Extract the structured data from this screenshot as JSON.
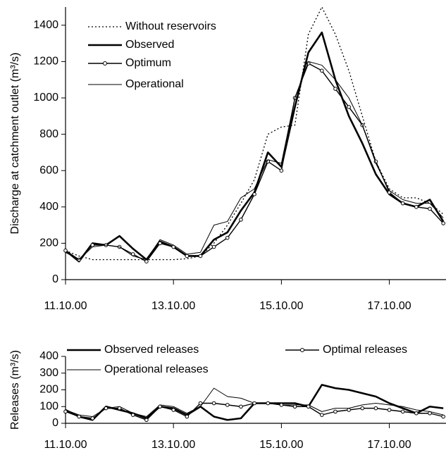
{
  "chart_data": [
    {
      "type": "line",
      "ylabel": "Discharge at catchment outlet (m³/s)",
      "x": [
        11,
        11.25,
        11.5,
        11.75,
        12,
        12.25,
        12.5,
        12.75,
        13,
        13.25,
        13.5,
        13.75,
        14,
        14.25,
        14.5,
        14.75,
        15,
        15.25,
        15.5,
        15.75,
        16,
        16.25,
        16.5,
        16.75,
        17,
        17.25,
        17.5,
        17.75,
        18
      ],
      "xlim": [
        11,
        18.05
      ],
      "xticks": [
        {
          "value": 11,
          "label": "11.10.00"
        },
        {
          "value": 13,
          "label": "13.10.00"
        },
        {
          "value": 15,
          "label": "15.10.00"
        },
        {
          "value": 17,
          "label": "17.10.00"
        }
      ],
      "ylim": [
        0,
        1500
      ],
      "yticks": [
        0,
        200,
        400,
        600,
        800,
        1000,
        1200,
        1400
      ],
      "series": [
        {
          "name": "Without reservoirs",
          "color": "#000000",
          "style": "dotted",
          "values": [
            160,
            130,
            110,
            110,
            110,
            110,
            110,
            110,
            110,
            115,
            130,
            200,
            300,
            420,
            550,
            800,
            840,
            850,
            1350,
            1500,
            1350,
            1150,
            900,
            650,
            500,
            450,
            450,
            420,
            360
          ]
        },
        {
          "name": "Observed",
          "color": "#000000",
          "style": "thick",
          "values": [
            160,
            100,
            200,
            190,
            240,
            170,
            110,
            210,
            180,
            130,
            130,
            220,
            260,
            380,
            480,
            700,
            620,
            950,
            1250,
            1360,
            1100,
            900,
            750,
            580,
            470,
            420,
            400,
            440,
            320
          ]
        },
        {
          "name": "Optimum",
          "color": "#000000",
          "style": "markers",
          "values": [
            160,
            110,
            190,
            190,
            180,
            140,
            100,
            200,
            180,
            130,
            130,
            180,
            230,
            330,
            470,
            650,
            600,
            1000,
            1190,
            1150,
            1050,
            950,
            850,
            650,
            480,
            420,
            400,
            390,
            310
          ]
        },
        {
          "name": "Operational",
          "color": "#000000",
          "style": "thin",
          "values": [
            150,
            110,
            180,
            190,
            180,
            130,
            110,
            220,
            190,
            140,
            150,
            300,
            320,
            450,
            500,
            660,
            640,
            1000,
            1200,
            1180,
            1100,
            1000,
            850,
            640,
            490,
            440,
            420,
            420,
            340
          ]
        }
      ]
    },
    {
      "type": "line",
      "ylabel": "Releases (m³/s)",
      "x": [
        11,
        11.25,
        11.5,
        11.75,
        12,
        12.25,
        12.5,
        12.75,
        13,
        13.25,
        13.5,
        13.75,
        14,
        14.25,
        14.5,
        14.75,
        15,
        15.25,
        15.5,
        15.75,
        16,
        16.25,
        16.5,
        16.75,
        17,
        17.25,
        17.5,
        17.75,
        18
      ],
      "xlim": [
        11,
        18.05
      ],
      "xticks": [
        {
          "value": 11,
          "label": "11.10.00"
        },
        {
          "value": 13,
          "label": "13.10.00"
        },
        {
          "value": 15,
          "label": "15.10.00"
        },
        {
          "value": 17,
          "label": "17.10.00"
        }
      ],
      "ylim": [
        0,
        400
      ],
      "yticks": [
        0,
        100,
        200,
        300,
        400
      ],
      "series": [
        {
          "name": "Observed releases",
          "color": "#000000",
          "style": "thick",
          "values": [
            80,
            40,
            20,
            100,
            80,
            60,
            30,
            100,
            90,
            50,
            100,
            40,
            20,
            30,
            120,
            120,
            120,
            120,
            100,
            230,
            210,
            200,
            180,
            160,
            120,
            90,
            60,
            100,
            90
          ]
        },
        {
          "name": "Operational releases",
          "color": "#000000",
          "style": "thin",
          "values": [
            80,
            50,
            40,
            90,
            100,
            60,
            40,
            110,
            100,
            60,
            100,
            210,
            160,
            150,
            120,
            120,
            110,
            110,
            110,
            70,
            90,
            90,
            110,
            120,
            110,
            100,
            80,
            70,
            50
          ]
        },
        {
          "name": "Optimal releases",
          "color": "#000000",
          "style": "markers",
          "values": [
            70,
            40,
            30,
            90,
            90,
            50,
            20,
            100,
            80,
            40,
            120,
            120,
            110,
            100,
            120,
            120,
            110,
            100,
            100,
            50,
            70,
            80,
            90,
            90,
            80,
            70,
            60,
            60,
            40
          ]
        }
      ]
    }
  ]
}
